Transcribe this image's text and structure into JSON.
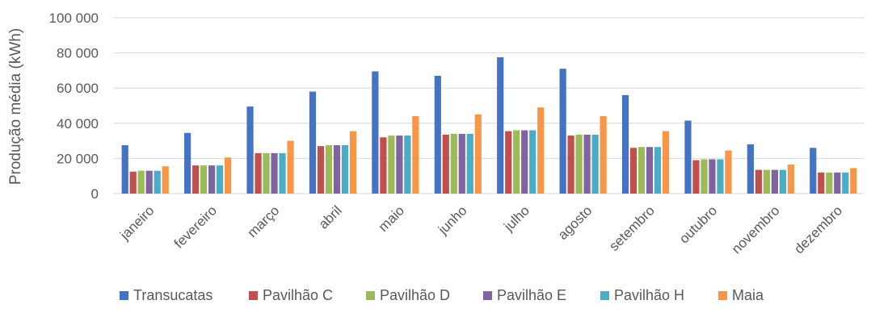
{
  "chart_data": {
    "type": "bar",
    "title": "",
    "xlabel": "",
    "ylabel": "Produção média (kWh)",
    "ylim": [
      0,
      100000
    ],
    "yticks": [
      0,
      20000,
      40000,
      60000,
      80000,
      100000
    ],
    "ytick_labels": [
      "0",
      "20 000",
      "40 000",
      "60 000",
      "80 000",
      "100 000"
    ],
    "grid": "horizontal",
    "legend_position": "bottom",
    "categories": [
      "janeiro",
      "fevereiro",
      "março",
      "abril",
      "maio",
      "junho",
      "julho",
      "agosto",
      "setembro",
      "outubro",
      "novembro",
      "dezembro"
    ],
    "series": [
      {
        "name": "Transucatas",
        "color": "#4472c4",
        "values": [
          27500,
          34500,
          49500,
          58000,
          69500,
          67000,
          77500,
          71000,
          56000,
          41500,
          28000,
          26000
        ]
      },
      {
        "name": "Pavilhão C",
        "color": "#c0504d",
        "values": [
          12500,
          16000,
          23000,
          27000,
          32000,
          33500,
          35500,
          33000,
          26000,
          19000,
          13500,
          12000
        ]
      },
      {
        "name": "Pavilhão D",
        "color": "#9bbb59",
        "values": [
          13000,
          16000,
          23000,
          27500,
          33000,
          34000,
          36000,
          33500,
          26500,
          19500,
          13500,
          12000
        ]
      },
      {
        "name": "Pavilhão E",
        "color": "#8064a2",
        "values": [
          13000,
          16000,
          23000,
          27500,
          33000,
          34000,
          36000,
          33500,
          26500,
          19500,
          13500,
          12000
        ]
      },
      {
        "name": "Pavilhão H",
        "color": "#4bacc6",
        "values": [
          13000,
          16000,
          23000,
          27500,
          33000,
          34000,
          36000,
          33500,
          26500,
          19500,
          13500,
          12000
        ]
      },
      {
        "name": "Maia",
        "color": "#f79646",
        "values": [
          15500,
          20500,
          30000,
          35500,
          44000,
          45000,
          49000,
          44000,
          35500,
          24500,
          16500,
          14500
        ]
      }
    ]
  }
}
